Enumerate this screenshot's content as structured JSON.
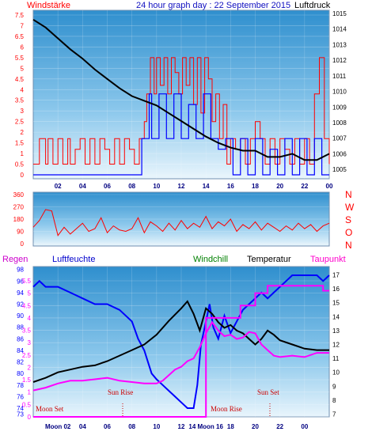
{
  "chart_data": [
    {
      "type": "line",
      "title": "24 hour graph day : 22 September 2015",
      "left_label": "Windstärke",
      "right_label": "Luftdruck",
      "x_ticks": [
        "02",
        "04",
        "06",
        "08",
        "10",
        "12",
        "14",
        "16",
        "18",
        "20",
        "22",
        "00"
      ],
      "y_left_ticks": [
        "0",
        "0.5",
        "1",
        "1.5",
        "2",
        "2.5",
        "3",
        "3.5",
        "4",
        "4.5",
        "5",
        "5.5",
        "6",
        "6.5",
        "7",
        "7.5"
      ],
      "y_left_range": [
        0,
        7.5
      ],
      "y_right_ticks": [
        "1005",
        "1006",
        "1007",
        "1008",
        "1009",
        "1010",
        "1011",
        "1012",
        "1013",
        "1014",
        "1015"
      ],
      "y_right_range": [
        1004.4,
        1015.2
      ],
      "series": [
        {
          "key": "wind",
          "color": "#ff0000",
          "y_axis": "left",
          "style": "step"
        },
        {
          "key": "gust",
          "color": "#0000ff",
          "y_axis": "left",
          "style": "step"
        },
        {
          "key": "pressure",
          "color": "#000000",
          "y_axis": "right",
          "style": "line"
        }
      ],
      "wind_hours": [
        0.0,
        0.5,
        1.0,
        1.2,
        1.6,
        2.0,
        2.4,
        2.8,
        3.0,
        3.4,
        3.8,
        4.2,
        4.6,
        5.0,
        5.4,
        5.8,
        6.2,
        6.6,
        7.0,
        7.4,
        7.8,
        8.2,
        8.6,
        9.0,
        9.2,
        9.5,
        9.8,
        10.0,
        10.3,
        10.6,
        10.9,
        11.2,
        11.5,
        11.8,
        12.1,
        12.4,
        12.7,
        13.0,
        13.3,
        13.6,
        13.9,
        14.2,
        14.5,
        14.8,
        15.1,
        15.4,
        15.7,
        16.0,
        16.4,
        16.8,
        17.2,
        17.6,
        18.0,
        18.4,
        18.8,
        19.2,
        19.6,
        20.0,
        20.4,
        20.8,
        21.2,
        21.6,
        22.0,
        22.4,
        22.8,
        23.2,
        23.6,
        24.0
      ],
      "wind_values": [
        0.5,
        1.7,
        0.5,
        1.7,
        0.5,
        1.7,
        0.5,
        1.7,
        0.5,
        1.2,
        1.7,
        0.5,
        1.7,
        0.5,
        1.7,
        1.2,
        0.5,
        1.7,
        0.5,
        1.7,
        1.2,
        0.5,
        1.7,
        2.5,
        3.8,
        5.5,
        3.8,
        5.5,
        4.2,
        5.5,
        3.8,
        5.5,
        4.8,
        3.8,
        5.5,
        4.2,
        5.5,
        3.3,
        5.5,
        2.9,
        5.5,
        4.5,
        2.5,
        3.8,
        1.7,
        3.3,
        0.5,
        1.7,
        1.2,
        1.7,
        0.5,
        1.7,
        2.5,
        1.7,
        0.5,
        1.7,
        0.5,
        1.7,
        1.2,
        0.5,
        1.7,
        0.5,
        1.7,
        0.5,
        3.8,
        5.5,
        1.7,
        0.5
      ],
      "gust_hours": [
        0.0,
        8.2,
        8.8,
        9.4,
        9.6,
        10.2,
        10.8,
        11.4,
        12.0,
        12.6,
        13.2,
        13.8,
        14.4,
        15.0,
        15.6,
        16.2,
        16.8,
        17.4,
        18.0,
        18.6,
        19.2,
        19.8,
        20.4,
        21.0,
        21.6,
        22.2,
        22.8,
        23.4,
        24.0
      ],
      "gust_values": [
        0.0,
        0.0,
        1.7,
        3.8,
        1.7,
        3.8,
        1.7,
        3.8,
        1.7,
        3.3,
        1.7,
        3.8,
        1.7,
        1.2,
        1.7,
        0.0,
        1.7,
        0.0,
        1.7,
        0.0,
        1.2,
        0.0,
        1.7,
        0.0,
        1.7,
        0.0,
        1.7,
        0.0,
        0.0
      ],
      "pressure_hours": [
        0,
        1,
        2,
        3,
        4,
        5,
        6,
        7,
        8,
        9,
        10,
        11,
        12,
        13,
        14,
        15,
        16,
        17,
        18,
        19,
        20,
        21,
        22,
        23,
        24
      ],
      "pressure_values": [
        1014.6,
        1014.1,
        1013.4,
        1012.7,
        1012.1,
        1011.4,
        1010.8,
        1010.2,
        1009.7,
        1009.4,
        1009.1,
        1008.6,
        1008.1,
        1007.6,
        1007.1,
        1006.7,
        1006.4,
        1006.2,
        1006.2,
        1005.8,
        1005.8,
        1006.0,
        1005.6,
        1005.6,
        1006.0
      ]
    },
    {
      "type": "line",
      "title": "",
      "right_labels": [
        "N",
        "W",
        "S",
        "O",
        "N"
      ],
      "y_ticks": [
        "0",
        "90",
        "180",
        "270",
        "360"
      ],
      "y_range": [
        0,
        360
      ],
      "series": [
        {
          "key": "direction",
          "color": "#ff0000"
        }
      ],
      "direction_hours": [
        0,
        0.5,
        1,
        1.5,
        2,
        2.5,
        3,
        3.5,
        4,
        4.5,
        5,
        5.5,
        6,
        6.5,
        7,
        7.5,
        8,
        8.5,
        9,
        9.5,
        10,
        10.5,
        11,
        11.5,
        12,
        12.5,
        13,
        13.5,
        14,
        14.5,
        15,
        15.5,
        16,
        16.5,
        17,
        17.5,
        18,
        18.5,
        19,
        19.5,
        20,
        20.5,
        21,
        21.5,
        22,
        22.5,
        23,
        23.5,
        24
      ],
      "direction_values": [
        120,
        170,
        250,
        240,
        60,
        120,
        70,
        110,
        150,
        90,
        110,
        190,
        80,
        130,
        100,
        90,
        110,
        190,
        80,
        160,
        130,
        90,
        150,
        100,
        170,
        110,
        150,
        120,
        200,
        110,
        160,
        130,
        180,
        90,
        140,
        110,
        160,
        100,
        150,
        120,
        90,
        130,
        100,
        150,
        110,
        140,
        90,
        130,
        150
      ]
    },
    {
      "type": "line",
      "title": "",
      "series_labels": [
        "Regen",
        "Luftfeuchte",
        "Windchill",
        "Temperatur",
        "Taupunkt"
      ],
      "y_left_ticks": [
        "73",
        "74",
        "76",
        "78",
        "80",
        "82",
        "84",
        "86",
        "88",
        "90",
        "92",
        "94",
        "96",
        "98"
      ],
      "y_left_range": [
        72.5,
        98.5
      ],
      "y_left2_ticks": [
        "0",
        "0.5",
        "1",
        "1.5",
        "2",
        "2.5",
        "3",
        "3.5",
        "4",
        "4.5",
        "5",
        "5.5"
      ],
      "y_left2_range": [
        0,
        5.5
      ],
      "y_right_ticks": [
        "7",
        "8",
        "9",
        "10",
        "11",
        "12",
        "13",
        "14",
        "15",
        "16",
        "17"
      ],
      "y_right_range": [
        6.8,
        17.6
      ],
      "annotations": [
        "Moon Set",
        "Sun Rise",
        "Moon Rise",
        "Sun Set"
      ],
      "bottom_labels": [
        "Moon 02",
        "04",
        "06",
        "08",
        "10",
        "12",
        "14 Moon 16",
        "18",
        "20",
        "22",
        "00"
      ],
      "series": [
        {
          "key": "rain",
          "color": "#ff00ff"
        },
        {
          "key": "humidity",
          "color": "#0000ff"
        },
        {
          "key": "temperature",
          "color": "#000000"
        },
        {
          "key": "dewpoint",
          "color": "#ff00ff"
        }
      ],
      "humidity_hours": [
        0,
        0.5,
        1,
        2,
        3,
        4,
        5,
        6,
        7,
        8,
        8.5,
        9,
        9.3,
        9.6,
        10,
        10.5,
        11,
        11.5,
        12,
        12.5,
        13,
        13.3,
        13.6,
        14,
        14.3,
        14.6,
        15,
        15.5,
        16,
        16.5,
        17,
        17.5,
        18,
        18.5,
        19,
        19.5,
        20,
        20.5,
        21,
        22,
        23,
        23.5,
        24
      ],
      "humidity_values": [
        95,
        96,
        95,
        95,
        94,
        93,
        92,
        92,
        91,
        89,
        86,
        84,
        82,
        80,
        79,
        78,
        77,
        76,
        75,
        74,
        74,
        78,
        85,
        89,
        92,
        88,
        86,
        90,
        87,
        89,
        91,
        92,
        93,
        94,
        93,
        94,
        95,
        96,
        97,
        97,
        97,
        96,
        97
      ],
      "temperature_hours": [
        0,
        1,
        2,
        3,
        4,
        5,
        6,
        7,
        8,
        9,
        10,
        11,
        12,
        12.5,
        13,
        13.5,
        14,
        14.5,
        15,
        15.5,
        16,
        16.5,
        17,
        17.5,
        18,
        18.5,
        19,
        19.5,
        20,
        21,
        22,
        23,
        24
      ],
      "temperature_values": [
        9.3,
        9.6,
        10.0,
        10.2,
        10.4,
        10.5,
        10.8,
        11.2,
        11.6,
        12.0,
        12.7,
        13.7,
        14.6,
        15.1,
        14.2,
        13.0,
        14.6,
        14.2,
        13.6,
        13.2,
        13.4,
        13.0,
        12.8,
        12.4,
        12.0,
        12.4,
        13.0,
        12.7,
        12.3,
        12.0,
        11.7,
        11.6,
        11.6
      ],
      "dewpoint_hours": [
        0,
        1,
        2,
        3,
        4,
        5,
        6,
        7,
        8,
        9,
        10,
        10.5,
        11,
        11.5,
        12,
        12.5,
        13,
        13.5,
        14,
        14.5,
        15,
        15.5,
        16,
        16.5,
        17,
        17.5,
        18,
        18.5,
        19,
        19.5,
        20,
        21,
        22,
        23,
        24
      ],
      "dewpoint_values": [
        8.7,
        8.9,
        9.2,
        9.4,
        9.4,
        9.5,
        9.6,
        9.4,
        9.3,
        9.2,
        9.2,
        9.4,
        9.8,
        10.2,
        10.4,
        10.8,
        11.0,
        11.8,
        12.8,
        13.6,
        13.0,
        12.6,
        12.7,
        12.4,
        12.5,
        12.9,
        12.8,
        12.0,
        11.6,
        11.2,
        11.1,
        11.2,
        11.1,
        11.4,
        11.4
      ],
      "rain_hours": [
        0,
        13.5,
        14,
        15,
        16,
        16.8,
        17,
        18,
        18.7,
        19,
        20,
        22,
        23.4,
        23.5,
        24
      ],
      "rain_values": [
        0,
        0,
        4.0,
        4.0,
        4.0,
        4.5,
        4.5,
        5.0,
        5.0,
        5.3,
        5.3,
        5.3,
        5.3,
        5.1,
        5.1
      ]
    }
  ]
}
